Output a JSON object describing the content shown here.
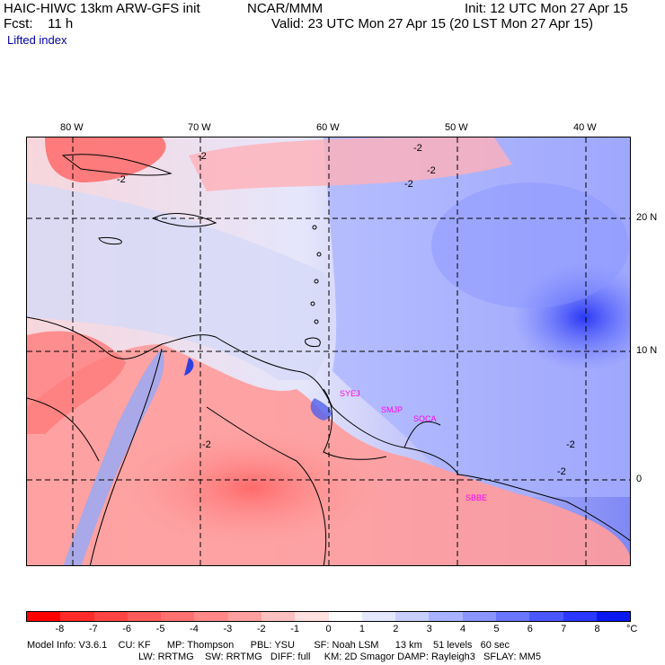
{
  "header": {
    "model_title": "HAIC-HIWC 13km ARW-GFS init",
    "org": "NCAR/MMM",
    "init": "Init: 12 UTC Mon 27 Apr 15",
    "fcst": "Fcst:    11 h",
    "valid": "Valid: 23 UTC Mon 27 Apr 15 (20 LST Mon 27 Apr 15)",
    "field": "Lifted index"
  },
  "map": {
    "lon_labels": [
      "80 W",
      "70 W",
      "60 W",
      "50 W",
      "40 W"
    ],
    "lat_labels": [
      "20 N",
      "10 N",
      "0"
    ],
    "contour_labels": [
      "-2",
      "-2",
      "-2",
      "-2",
      "-2",
      "-2",
      "-2",
      "-2"
    ],
    "station_labels": [
      "SYEJ",
      "SMJP",
      "SOCA",
      "SBBE"
    ],
    "station_color": "#ff00ff",
    "grid": "dashed"
  },
  "colorbar": {
    "ticks": [
      "-8",
      "-7",
      "-6",
      "-5",
      "-4",
      "-3",
      "-2",
      "-1",
      "0",
      "1",
      "2",
      "3",
      "4",
      "5",
      "6",
      "7",
      "8"
    ],
    "unit": "°C",
    "colors": [
      "#ff0000",
      "#ff2a2a",
      "#ff4444",
      "#ff5a5a",
      "#ff7070",
      "#ff8888",
      "#ffa0a0",
      "#ffc0c0",
      "#ffe0e0",
      "#ffffff",
      "#e4e8ff",
      "#c8cfff",
      "#a8b2ff",
      "#8a95ff",
      "#6a76ff",
      "#4a57ff",
      "#2a38ff",
      "#0a18f0"
    ]
  },
  "footer": {
    "line1": "Model Info: V3.6.1    CU: KF      MP: Thompson      PBL: YSU       SF: Noah LSM      13 km    51 levels   60 sec",
    "line2": "LW: RRTMG    SW: RRTMG   DIFF: full     KM: 2D Smagor DAMP: Rayleigh3   SFLAY: MM5"
  }
}
